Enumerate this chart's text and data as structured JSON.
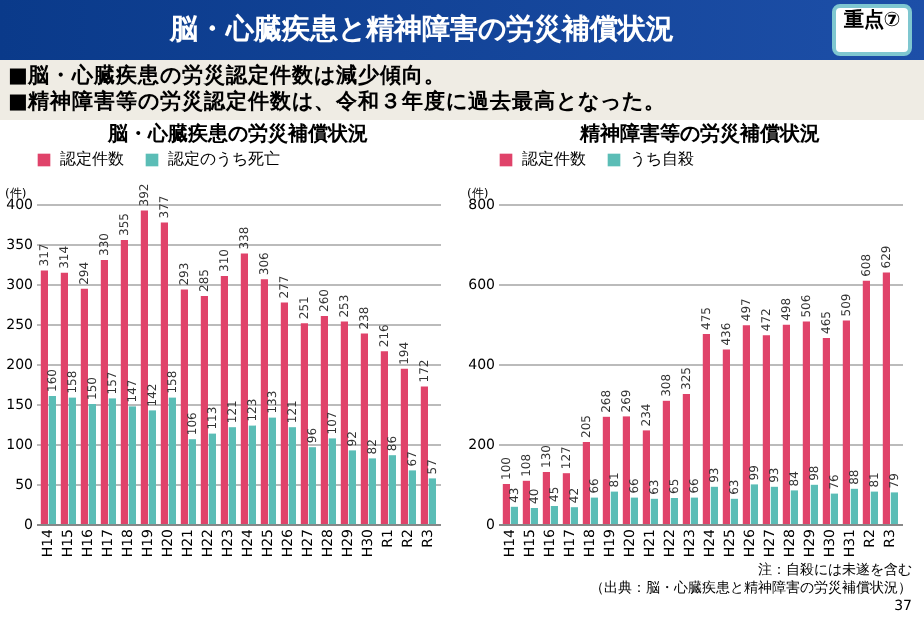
{
  "chart_data": [
    {
      "type": "other",
      "title": "脳・心臓疾患と精神障害の労災補償状況",
      "annotations": [
        "重点⑦",
        "■脳・心臓疾患の労災認定件数は減少傾向。",
        "■精神障害等の労災認定件数は、令和３年度に過去最高となった。"
      ]
    },
    {
      "type": "bar",
      "title": "脳・心臓疾患の労災補償状況",
      "ylabel": "(件)",
      "categories": [
        "H14",
        "H15",
        "H16",
        "H17",
        "H18",
        "H19",
        "H20",
        "H21",
        "H22",
        "H23",
        "H24",
        "H25",
        "H26",
        "H27",
        "H28",
        "H29",
        "H30",
        "R1",
        "R2",
        "R3"
      ],
      "series": [
        {
          "name": "認定件数",
          "color": "#e0436a",
          "values": [
            317,
            314,
            294,
            330,
            355,
            392,
            377,
            293,
            285,
            310,
            338,
            306,
            277,
            251,
            260,
            253,
            238,
            216,
            194,
            172
          ]
        },
        {
          "name": "認定のうち死亡",
          "color": "#5bbdb6",
          "values": [
            160,
            158,
            150,
            157,
            147,
            142,
            158,
            106,
            113,
            121,
            123,
            133,
            121,
            96,
            107,
            92,
            82,
            86,
            67,
            57
          ]
        }
      ],
      "ylim": [
        0,
        400
      ],
      "yticks": [
        0,
        50,
        100,
        150,
        200,
        250,
        300,
        350,
        400
      ],
      "grid": "y",
      "legend": "top",
      "data_labels": true
    },
    {
      "type": "bar",
      "title": "精神障害等の労災補償状況",
      "ylabel": "(件)",
      "categories": [
        "H14",
        "H15",
        "H16",
        "H17",
        "H18",
        "H19",
        "H20",
        "H21",
        "H22",
        "H23",
        "H24",
        "H25",
        "H26",
        "H27",
        "H28",
        "H29",
        "H30",
        "H31",
        "R2",
        "R3"
      ],
      "series": [
        {
          "name": "認定件数",
          "color": "#e0436a",
          "values": [
            100,
            108,
            130,
            127,
            205,
            268,
            269,
            234,
            308,
            325,
            475,
            436,
            497,
            472,
            498,
            506,
            465,
            509,
            608,
            629
          ]
        },
        {
          "name": "うち自殺",
          "color": "#5bbdb6",
          "values": [
            43,
            40,
            45,
            42,
            66,
            81,
            66,
            63,
            65,
            66,
            93,
            63,
            99,
            93,
            84,
            98,
            76,
            88,
            81,
            79
          ]
        }
      ],
      "ylim": [
        0,
        800
      ],
      "yticks": [
        0,
        200,
        400,
        600,
        800
      ],
      "grid": "y",
      "legend": "top",
      "data_labels": true,
      "annotations": [
        "注：自殺には未遂を含む",
        "（出典：脳・心臓疾患と精神障害の労災補償状況）",
        "37"
      ]
    }
  ]
}
